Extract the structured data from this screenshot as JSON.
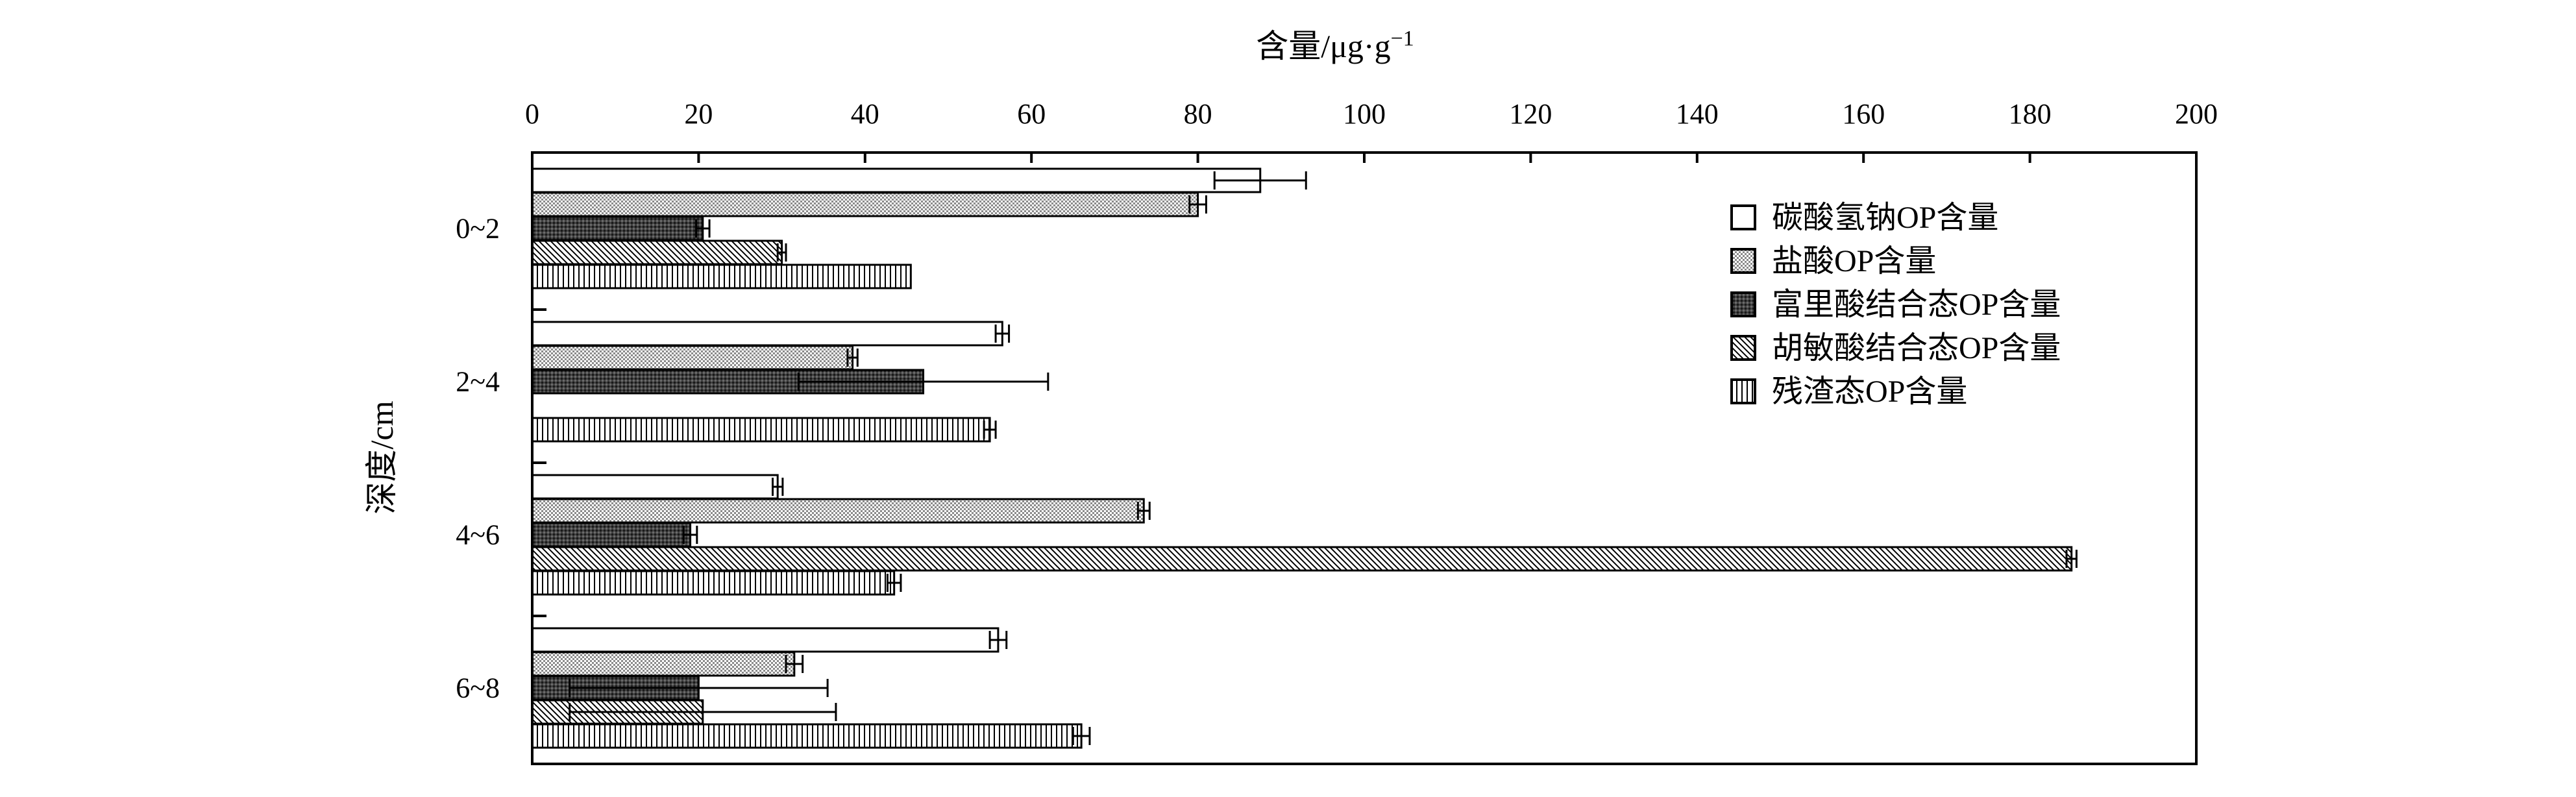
{
  "chart_data": {
    "type": "bar",
    "orientation": "horizontal",
    "xlabel": "含量/μg·g",
    "xlabel_superscript": "−1",
    "ylabel": "深度/cm",
    "xlim": [
      0,
      200
    ],
    "xticks": [
      "0",
      "20",
      "40",
      "60",
      "80",
      "100",
      "120",
      "140",
      "160",
      "180",
      "200"
    ],
    "x_axis_position": "top",
    "categories": [
      "0~2",
      "2~4",
      "4~6",
      "6~8"
    ],
    "legend_position": "top-right",
    "grid": false,
    "series": [
      {
        "name": "碳酸氢钠OP含量",
        "pattern": "open",
        "values": [
          87.5,
          56.5,
          29.5,
          56.0
        ],
        "errors": [
          5.5,
          0.8,
          0.6,
          1.0
        ]
      },
      {
        "name": "盐酸OP含量",
        "pattern": "fine-dots",
        "values": [
          80.0,
          38.5,
          73.5,
          31.5
        ],
        "errors": [
          1.0,
          0.6,
          0.7,
          1.0
        ]
      },
      {
        "name": "富里酸结合态OP含量",
        "pattern": "dark-grid",
        "values": [
          20.5,
          47.0,
          19.0,
          20.0
        ],
        "errors": [
          0.8,
          15.0,
          0.8,
          15.5
        ]
      },
      {
        "name": "胡敏酸结合态OP含量",
        "pattern": "diagonal-hatch",
        "values": [
          30.0,
          0,
          185.0,
          20.5
        ],
        "errors": [
          0.5,
          0,
          0.6,
          16.0
        ]
      },
      {
        "name": "残渣态OP含量",
        "pattern": "vertical-lines",
        "values": [
          45.5,
          55.0,
          43.5,
          66.0
        ],
        "errors": [
          0,
          0.7,
          0.8,
          1.0
        ]
      }
    ]
  }
}
